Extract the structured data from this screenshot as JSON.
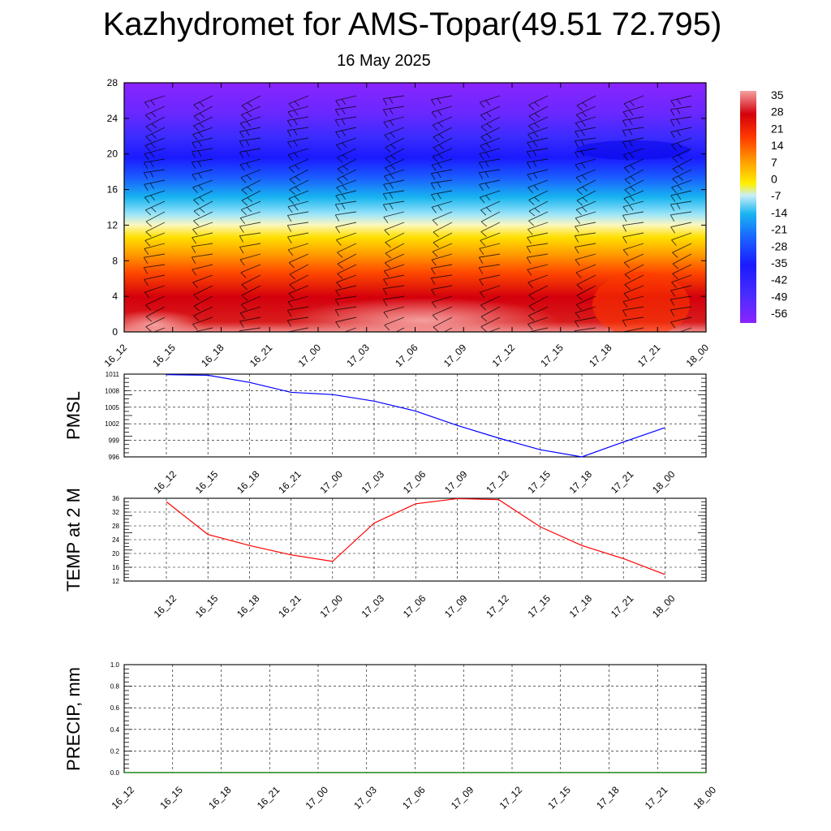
{
  "title": "Kazhydromet for AMS-Topar(49.51 72.795)",
  "subtitle": "16 May 2025",
  "chart_data": [
    {
      "type": "heatmap",
      "description_key": "cross-section",
      "x_ticks": [
        "16_12",
        "16_15",
        "16_18",
        "16_21",
        "17_00",
        "17_03",
        "17_06",
        "17_09",
        "17_12",
        "17_15",
        "17_18",
        "17_21",
        "18_00"
      ],
      "y_ticks": [
        "0",
        "4",
        "8",
        "12",
        "16",
        "20",
        "24",
        "28"
      ],
      "ylim": [
        0,
        28
      ],
      "colorbar_labels": [
        "35",
        "28",
        "21",
        "14",
        "7",
        "0",
        "-7",
        "-14",
        "-21",
        "-28",
        "-35",
        "-42",
        "-49",
        "-56"
      ],
      "colorbar_range": [
        -63,
        42
      ],
      "colors": {
        "purple": "#7f1fff",
        "blue": "#1a1aff",
        "cyan": "#18b4f0",
        "pale": "#f4f7c8",
        "yellow": "#fff000",
        "orange": "#ff8a00",
        "red": "#d4000c",
        "pink": "#f28b8b"
      }
    },
    {
      "type": "line",
      "ylabel": "PMSL",
      "x": [
        "16_12",
        "16_15",
        "16_18",
        "16_21",
        "17_00",
        "17_03",
        "17_06",
        "17_09",
        "17_12",
        "17_15",
        "17_18",
        "17_21",
        "18_00"
      ],
      "y_ticks": [
        "1011",
        "1008",
        "1005",
        "1002",
        "999",
        "996"
      ],
      "ylim": [
        996,
        1011
      ],
      "series": [
        {
          "values": [
            1010.9,
            1010.8,
            1009.5,
            1007.7,
            1007.3,
            1006.1,
            1004.3,
            1001.7,
            999.4,
            997.3,
            996.0,
            998.7,
            1001.3
          ],
          "color": "#0000ff"
        }
      ],
      "grid": true
    },
    {
      "type": "line",
      "ylabel": "TEMP at 2 M",
      "x": [
        "16_12",
        "16_15",
        "16_18",
        "16_21",
        "17_00",
        "17_03",
        "17_06",
        "17_09",
        "17_12",
        "17_15",
        "17_18",
        "17_21",
        "18_00"
      ],
      "y_ticks": [
        "36",
        "32",
        "28",
        "24",
        "20",
        "16",
        "12"
      ],
      "ylim": [
        12,
        36
      ],
      "series": [
        {
          "values": [
            35.0,
            25.5,
            22.3,
            19.6,
            17.7,
            28.8,
            34.4,
            35.9,
            35.6,
            27.7,
            22.3,
            18.5,
            13.9
          ],
          "color": "#ff0000"
        }
      ],
      "grid": true
    },
    {
      "type": "line",
      "ylabel": "PRECIP, mm",
      "x": [
        "16_12",
        "16_15",
        "16_18",
        "16_21",
        "17_00",
        "17_03",
        "17_06",
        "17_09",
        "17_12",
        "17_15",
        "17_18",
        "17_21",
        "18_00"
      ],
      "y_ticks": [
        "1.0",
        "0.8",
        "0.6",
        "0.4",
        "0.2",
        "0.0"
      ],
      "ylim": [
        0,
        1
      ],
      "series": [
        {
          "values": [
            0,
            0,
            0,
            0,
            0,
            0,
            0,
            0,
            0,
            0,
            0,
            0,
            0
          ],
          "color": "#008000"
        }
      ],
      "grid": true
    }
  ]
}
